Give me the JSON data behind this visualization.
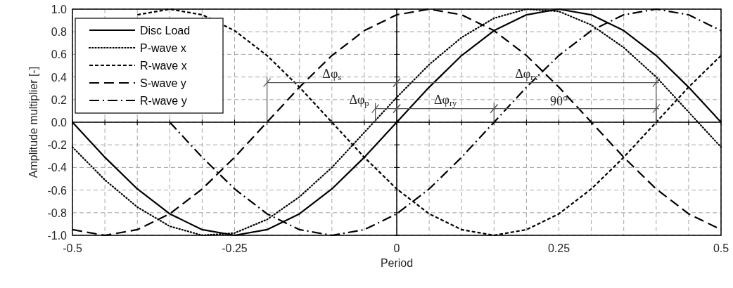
{
  "chart_data": {
    "type": "line",
    "xlabel": "Period",
    "ylabel": "Amplitude multiplier [-]",
    "x": [
      -0.5,
      -0.45,
      -0.4,
      -0.35,
      -0.3,
      -0.25,
      -0.2,
      -0.15,
      -0.1,
      -0.05,
      0,
      0.05,
      0.1,
      0.15,
      0.2,
      0.25,
      0.3,
      0.35,
      0.4,
      0.45,
      0.5
    ],
    "series": [
      {
        "name": "Disc Load",
        "color": "#000000",
        "line_style": "solid",
        "values": [
          0,
          -0.31,
          -0.59,
          -0.81,
          -0.95,
          -1,
          -0.95,
          -0.81,
          -0.59,
          -0.31,
          0,
          0.31,
          0.59,
          0.81,
          0.95,
          1,
          0.95,
          0.81,
          0.59,
          0.31,
          0
        ]
      },
      {
        "name": "P-wave x",
        "color": "#000000",
        "line_style": "dotted",
        "values": [
          -0.22,
          -0.51,
          -0.75,
          -0.92,
          -1,
          -0.98,
          -0.86,
          -0.66,
          -0.4,
          -0.09,
          0.22,
          0.51,
          0.75,
          0.92,
          1,
          0.98,
          0.86,
          0.66,
          0.4,
          0.09,
          -0.22
        ]
      },
      {
        "name": "R-wave x",
        "color": "#000000",
        "line_style": "dashed",
        "values": [
          null,
          null,
          0.95,
          1,
          0.95,
          0.81,
          0.59,
          0.31,
          0,
          -0.31,
          -0.59,
          -0.81,
          -0.95,
          -1,
          -0.95,
          -0.81,
          -0.59,
          -0.31,
          0,
          0.31,
          0.59
        ]
      },
      {
        "name": "S-wave y",
        "color": "#000000",
        "line_style": "longdash",
        "values": [
          -0.95,
          -1,
          -0.95,
          -0.81,
          -0.59,
          -0.31,
          0,
          0.31,
          0.59,
          0.81,
          0.95,
          1,
          0.95,
          0.81,
          0.59,
          0.31,
          0,
          -0.31,
          -0.59,
          -0.81,
          -0.95
        ]
      },
      {
        "name": "R-wave y",
        "color": "#000000",
        "line_style": "dashdot",
        "values": [
          null,
          null,
          null,
          0,
          -0.31,
          -0.59,
          -0.81,
          -0.95,
          -1,
          -0.95,
          -0.81,
          -0.59,
          -0.31,
          0,
          0.31,
          0.59,
          0.81,
          0.95,
          1,
          0.95,
          0.81
        ]
      }
    ],
    "xlim": [
      -0.5,
      0.5
    ],
    "xticks": [
      -0.5,
      {
        "value": -0.45,
        "label": null
      },
      {
        "value": -0.4,
        "label": null
      },
      {
        "value": -0.35,
        "label": null
      },
      {
        "value": -0.3,
        "label": null
      },
      -0.25,
      {
        "value": -0.2,
        "label": null
      },
      {
        "value": -0.15,
        "label": null
      },
      {
        "value": -0.1,
        "label": null
      },
      {
        "value": -0.05,
        "label": null
      },
      0,
      {
        "value": 0.05,
        "label": null
      },
      {
        "value": 0.1,
        "label": null
      },
      {
        "value": 0.15,
        "label": null
      },
      {
        "value": 0.2,
        "label": null
      },
      0.25,
      {
        "value": 0.3,
        "label": null
      },
      {
        "value": 0.35,
        "label": null
      },
      {
        "value": 0.4,
        "label": null
      },
      {
        "value": 0.45,
        "label": null
      },
      0.5
    ],
    "ylim": [
      -1,
      1
    ],
    "yticks": [
      {
        "value": -1,
        "label": "-1.0"
      },
      {
        "value": -0.8,
        "label": "-0.8"
      },
      {
        "value": -0.6,
        "label": "-0.6"
      },
      {
        "value": -0.4,
        "label": "-0.4"
      },
      {
        "value": -0.2,
        "label": "-0.2"
      },
      {
        "value": 0,
        "label": "0.0"
      },
      {
        "value": 0.2,
        "label": "0.2"
      },
      {
        "value": 0.4,
        "label": "0.4"
      },
      {
        "value": 0.6,
        "label": "0.6"
      },
      {
        "value": 0.8,
        "label": "0.8"
      },
      {
        "value": 1,
        "label": "1.0"
      }
    ],
    "grid": true,
    "legend": "top left",
    "marker": "none",
    "annotations": [
      "Δφ$_{s}$",
      "Δφ$_{p}$",
      "Δφ$_{ry}$",
      "Δφ$_{rx}$",
      "90°"
    ]
  }
}
